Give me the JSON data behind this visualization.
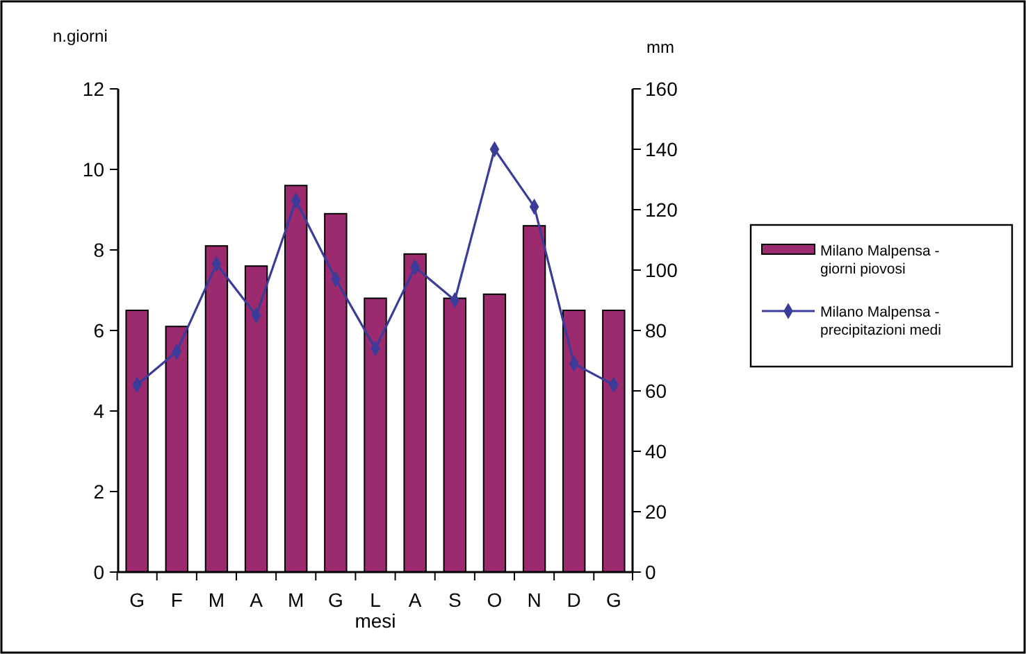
{
  "chart_data": {
    "type": "bar",
    "xlabel": "mesi",
    "ylabel": "n.giorni",
    "y2label": "mm",
    "categories": [
      "G",
      "F",
      "M",
      "A",
      "M",
      "G",
      "L",
      "A",
      "S",
      "O",
      "N",
      "D",
      "G"
    ],
    "series": [
      {
        "name": "Milano Malpensa - giorni piovosi",
        "color": "#9b2a6e",
        "values": [
          6.5,
          6.1,
          8.1,
          7.6,
          9.6,
          8.9,
          6.8,
          7.9,
          6.8,
          6.9,
          8.6,
          6.5,
          6.5
        ]
      },
      {
        "name": "Milano Malpensa - precipitazioni medi",
        "type": "line",
        "axis": "y2",
        "color": "#3b3b9a",
        "marker": "diamond",
        "values": [
          62,
          73,
          102,
          85,
          123,
          97,
          74,
          101,
          90,
          140,
          121,
          69,
          62
        ]
      }
    ],
    "ylim": [
      0,
      12
    ],
    "yticks": [
      0,
      2,
      4,
      6,
      8,
      10,
      12
    ],
    "y2lim": [
      0,
      160
    ],
    "y2ticks": [
      0,
      20,
      40,
      60,
      80,
      100,
      120,
      140,
      160
    ],
    "grid": false,
    "legend": "right"
  }
}
